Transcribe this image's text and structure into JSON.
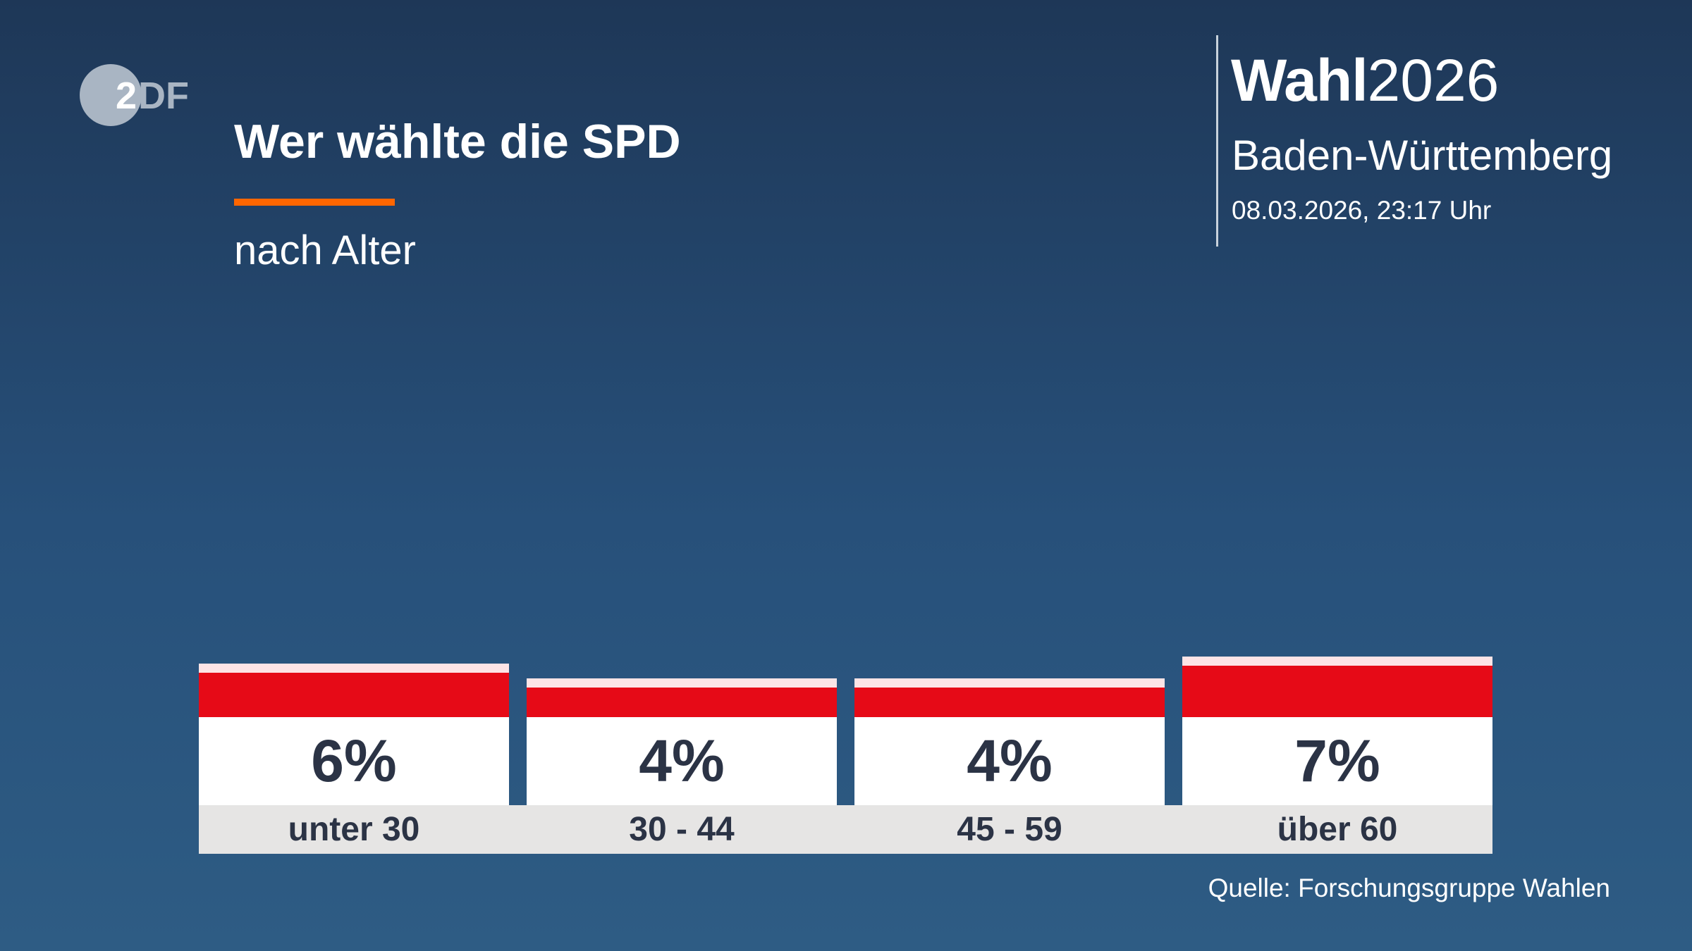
{
  "logo": {
    "text": "2DF",
    "name": "ZDF"
  },
  "header": {
    "title": "Wer wählte die SPD",
    "subtitle": "nach Alter",
    "brand_bold": "Wahl",
    "brand_year": "2026",
    "region": "Baden-Württemberg",
    "timestamp": "08.03.2026, 23:17 Uhr"
  },
  "source": "Quelle: Forschungsgruppe Wahlen",
  "colors": {
    "party": "#e60a17",
    "accent": "#ff6600",
    "value_text": "#2b3345"
  },
  "chart_data": {
    "type": "bar",
    "title": "Wer wählte die SPD",
    "subtitle": "nach Alter",
    "categories": [
      "unter 30",
      "30 - 44",
      "45 - 59",
      "über 60"
    ],
    "values": [
      6,
      4,
      4,
      7
    ],
    "value_labels": [
      "6%",
      "4%",
      "4%",
      "7%"
    ],
    "unit": "%",
    "grid": false
  }
}
